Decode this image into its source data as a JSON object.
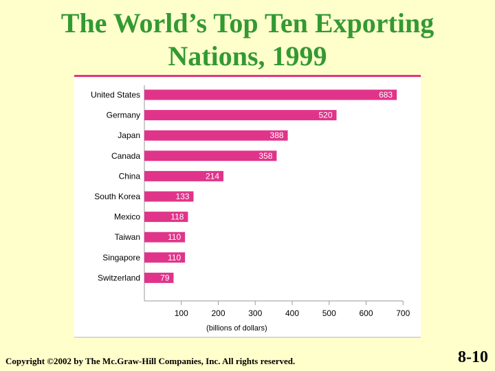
{
  "slide": {
    "title_line1": "The World’s Top Ten Exporting",
    "title_line2": "Nations, 1999",
    "copyright": "Copyright ©2002 by The Mc.Graw-Hill Companies, Inc.  All rights reserved.",
    "slide_number": "8-10"
  },
  "colors": {
    "title": "#339933",
    "bar": "#E0348A",
    "background": "#FFFFCC",
    "panel": "#FFFFFF"
  },
  "chart_data": {
    "type": "bar",
    "orientation": "horizontal",
    "title": "The World’s Top Ten Exporting Nations, 1999",
    "xlabel": "(billions of dollars)",
    "ylabel": "",
    "xlim": [
      0,
      700
    ],
    "x_ticks": [
      "100",
      "200",
      "300",
      "400",
      "500",
      "600",
      "700"
    ],
    "x_tick_values": [
      100,
      200,
      300,
      400,
      500,
      600,
      700
    ],
    "categories": [
      "United States",
      "Germany",
      "Japan",
      "Canada",
      "China",
      "South Korea",
      "Mexico",
      "Taiwan",
      "Singapore",
      "Switzerland"
    ],
    "values": [
      683,
      520,
      388,
      358,
      214,
      133,
      118,
      110,
      110,
      79
    ],
    "data_labels": [
      "683",
      "520",
      "388",
      "358",
      "214",
      "133",
      "118",
      "110",
      "110",
      "79"
    ],
    "grid": false
  }
}
